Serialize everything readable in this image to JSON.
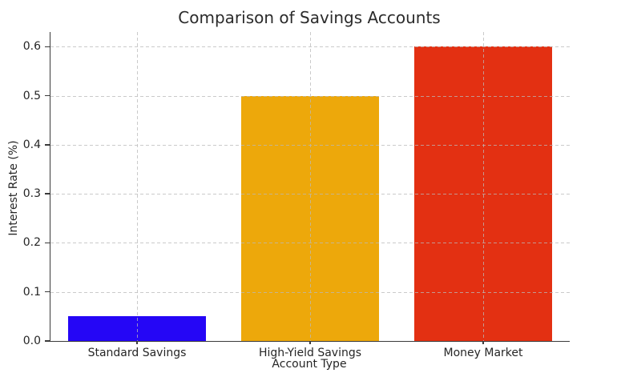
{
  "chart_data": {
    "type": "bar",
    "title": "Comparison of Savings Accounts",
    "xlabel": "Account Type",
    "ylabel": "Interest Rate (%)",
    "categories": [
      "Standard Savings",
      "High-Yield Savings",
      "Money Market"
    ],
    "values": [
      0.05,
      0.5,
      0.6
    ],
    "bar_colors": [
      "#2506f6",
      "#eda80b",
      "#e33012"
    ],
    "yticks": [
      0.0,
      0.1,
      0.2,
      0.3,
      0.4,
      0.5,
      0.6
    ],
    "ytick_labels": [
      "0.0",
      "0.1",
      "0.2",
      "0.3",
      "0.4",
      "0.5",
      "0.6"
    ],
    "ylim": [
      0,
      0.63
    ],
    "bar_width_fraction": 0.8,
    "grid": true,
    "grid_style": "dashed",
    "legend_position": "none",
    "background": "#ffffff"
  },
  "colors": {
    "axis": "#3a3a3a",
    "grid": "#bdbdbd",
    "text": "#262626",
    "title": "#2b2b2b"
  }
}
